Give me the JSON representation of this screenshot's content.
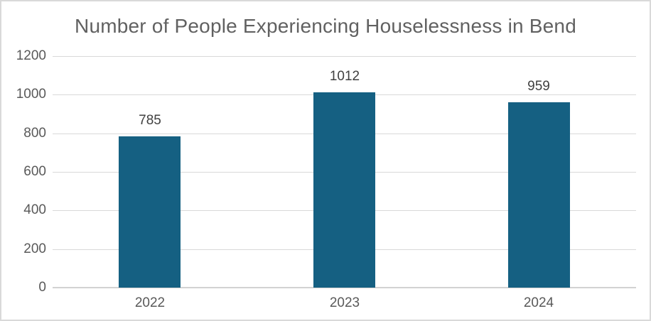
{
  "chart_data": {
    "type": "bar",
    "title": "Number of People Experiencing Houselessness in Bend",
    "categories": [
      "2022",
      "2023",
      "2024"
    ],
    "values": [
      785,
      1012,
      959
    ],
    "data_labels": [
      "785",
      "1012",
      "959"
    ],
    "xlabel": "",
    "ylabel": "",
    "ylim": [
      0,
      1200
    ],
    "yticks": [
      0,
      200,
      400,
      600,
      800,
      1000,
      1200
    ],
    "ytick_labels": [
      "0",
      "200",
      "400",
      "600",
      "800",
      "1000",
      "1200"
    ],
    "grid": "horizontal",
    "legend": "none",
    "bar_color": "#156082",
    "title_color": "#616161",
    "tick_label_color": "#595959",
    "data_label_color": "#404040",
    "gridline_color": "#d9d9d9",
    "axis_line_color": "#d2d2d2",
    "frame_border_color": "#d9d9d9",
    "background_color": "#ffffff"
  }
}
